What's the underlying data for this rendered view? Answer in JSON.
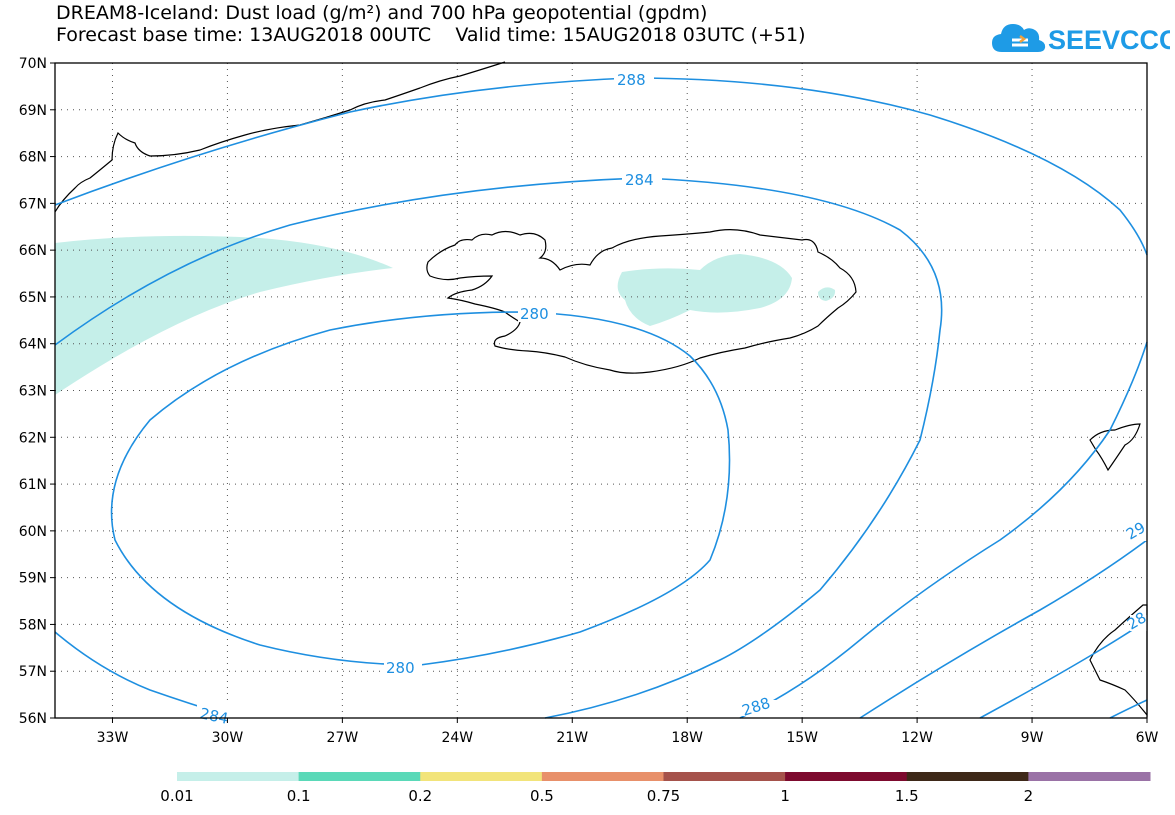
{
  "title": {
    "line1": "DREAM8-Iceland: Dust load (g/m²) and 700 hPa geopotential (gpdm)",
    "line2": "Forecast base time: 13AUG2018 00UTC    Valid time: 15AUG2018 03UTC (+51)"
  },
  "logo": {
    "text": "SEEVCCC",
    "icon": "cloud-icon",
    "color": "#1e9be6"
  },
  "map_data": {
    "type": "contour-map",
    "region": "Iceland",
    "lon_range": [
      -34.5,
      -6
    ],
    "lat_range": [
      56,
      70
    ],
    "lat_ticks": [
      "70N",
      "69N",
      "68N",
      "67N",
      "66N",
      "65N",
      "64N",
      "63N",
      "62N",
      "61N",
      "60N",
      "59N",
      "58N",
      "57N",
      "56N"
    ],
    "lon_ticks": [
      "33W",
      "30W",
      "27W",
      "24W",
      "21W",
      "18W",
      "15W",
      "12W",
      "9W",
      "6W"
    ],
    "grid": "dotted",
    "contour_color": "#1e8fe0",
    "contour_labels": [
      "288",
      "284",
      "280",
      "280",
      "284",
      "288",
      "29",
      "28"
    ],
    "dust_fill_color": "#c5efe9"
  },
  "legend": {
    "labels": [
      "0.01",
      "0.1",
      "0.2",
      "0.5",
      "0.75",
      "1",
      "1.5",
      "2"
    ],
    "colors": [
      "#c5efe9",
      "#5ad9b8",
      "#f2e47a",
      "#e8906a",
      "#a5524b",
      "#7d0a2e",
      "#3e2818",
      "#9a72a6"
    ]
  }
}
